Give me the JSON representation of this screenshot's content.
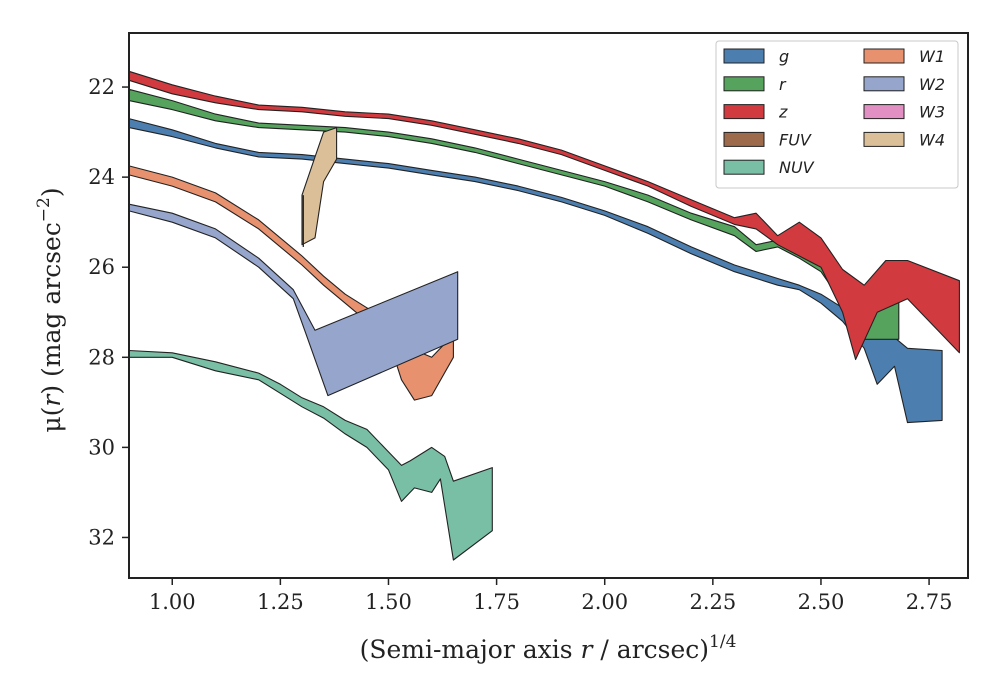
{
  "chart_data": {
    "type": "area",
    "title": "",
    "xlabel": {
      "prefix": "(Semi-major axis ",
      "var": "r",
      "suffix": " / arcsec)",
      "sup": "1/4"
    },
    "ylabel": {
      "prefix": "μ(",
      "var": "r",
      "suffix": ") (mag arcsec",
      "sup": "−2",
      "close": ")"
    },
    "xlim": [
      0.9,
      2.84
    ],
    "ylim": [
      32.9,
      20.8
    ],
    "y_inverted": true,
    "xticks": [
      1.0,
      1.25,
      1.5,
      1.75,
      2.0,
      2.25,
      2.5,
      2.75
    ],
    "xtick_labels": [
      "1.00",
      "1.25",
      "1.50",
      "1.75",
      "2.00",
      "2.25",
      "2.50",
      "2.75"
    ],
    "yticks": [
      22,
      24,
      26,
      28,
      30,
      32
    ],
    "ytick_labels": [
      "22",
      "24",
      "26",
      "28",
      "30",
      "32"
    ],
    "grid": false,
    "legend_position": "top-right",
    "legend_columns": 2,
    "series": [
      {
        "name": "g",
        "color": "#4c7fb0",
        "upper": [
          [
            0.9,
            22.7
          ],
          [
            1.0,
            22.95
          ],
          [
            1.1,
            23.25
          ],
          [
            1.2,
            23.45
          ],
          [
            1.3,
            23.5
          ],
          [
            1.4,
            23.6
          ],
          [
            1.5,
            23.7
          ],
          [
            1.6,
            23.85
          ],
          [
            1.7,
            24.0
          ],
          [
            1.8,
            24.2
          ],
          [
            1.9,
            24.45
          ],
          [
            2.0,
            24.75
          ],
          [
            2.1,
            25.1
          ],
          [
            2.2,
            25.55
          ],
          [
            2.3,
            25.95
          ],
          [
            2.4,
            26.25
          ],
          [
            2.45,
            26.4
          ],
          [
            2.5,
            26.6
          ],
          [
            2.55,
            26.9
          ],
          [
            2.6,
            27.3
          ],
          [
            2.65,
            27.4
          ],
          [
            2.7,
            27.8
          ],
          [
            2.78,
            27.85
          ]
        ],
        "lower": [
          [
            0.9,
            22.9
          ],
          [
            1.0,
            23.1
          ],
          [
            1.1,
            23.35
          ],
          [
            1.2,
            23.55
          ],
          [
            1.3,
            23.6
          ],
          [
            1.4,
            23.7
          ],
          [
            1.5,
            23.8
          ],
          [
            1.6,
            23.95
          ],
          [
            1.7,
            24.1
          ],
          [
            1.8,
            24.3
          ],
          [
            1.9,
            24.55
          ],
          [
            2.0,
            24.85
          ],
          [
            2.1,
            25.25
          ],
          [
            2.2,
            25.7
          ],
          [
            2.3,
            26.1
          ],
          [
            2.4,
            26.4
          ],
          [
            2.45,
            26.5
          ],
          [
            2.5,
            26.8
          ],
          [
            2.55,
            27.2
          ],
          [
            2.6,
            27.8
          ],
          [
            2.63,
            28.6
          ],
          [
            2.67,
            28.2
          ],
          [
            2.7,
            29.45
          ],
          [
            2.78,
            29.4
          ]
        ]
      },
      {
        "name": "r",
        "color": "#55a35d",
        "upper": [
          [
            0.9,
            22.05
          ],
          [
            1.0,
            22.3
          ],
          [
            1.1,
            22.6
          ],
          [
            1.2,
            22.8
          ],
          [
            1.3,
            22.85
          ],
          [
            1.4,
            22.9
          ],
          [
            1.5,
            23.0
          ],
          [
            1.6,
            23.15
          ],
          [
            1.7,
            23.35
          ],
          [
            1.8,
            23.6
          ],
          [
            1.9,
            23.85
          ],
          [
            2.0,
            24.1
          ],
          [
            2.1,
            24.4
          ],
          [
            2.2,
            24.8
          ],
          [
            2.3,
            25.1
          ],
          [
            2.35,
            25.5
          ],
          [
            2.4,
            25.4
          ],
          [
            2.45,
            25.6
          ],
          [
            2.5,
            25.8
          ],
          [
            2.55,
            26.4
          ],
          [
            2.6,
            26.8
          ],
          [
            2.68,
            26.75
          ]
        ],
        "lower": [
          [
            0.9,
            22.3
          ],
          [
            1.0,
            22.5
          ],
          [
            1.1,
            22.75
          ],
          [
            1.2,
            22.9
          ],
          [
            1.3,
            22.95
          ],
          [
            1.4,
            23.0
          ],
          [
            1.5,
            23.1
          ],
          [
            1.6,
            23.25
          ],
          [
            1.7,
            23.45
          ],
          [
            1.8,
            23.7
          ],
          [
            1.9,
            23.95
          ],
          [
            2.0,
            24.2
          ],
          [
            2.1,
            24.55
          ],
          [
            2.2,
            24.95
          ],
          [
            2.3,
            25.3
          ],
          [
            2.35,
            25.65
          ],
          [
            2.4,
            25.55
          ],
          [
            2.45,
            25.8
          ],
          [
            2.5,
            26.1
          ],
          [
            2.55,
            26.8
          ],
          [
            2.6,
            27.6
          ],
          [
            2.68,
            27.6
          ]
        ]
      },
      {
        "name": "z",
        "color": "#d13b40",
        "upper": [
          [
            0.9,
            21.65
          ],
          [
            1.0,
            21.95
          ],
          [
            1.1,
            22.2
          ],
          [
            1.2,
            22.4
          ],
          [
            1.3,
            22.45
          ],
          [
            1.4,
            22.55
          ],
          [
            1.5,
            22.6
          ],
          [
            1.6,
            22.75
          ],
          [
            1.7,
            22.95
          ],
          [
            1.8,
            23.15
          ],
          [
            1.9,
            23.4
          ],
          [
            2.0,
            23.75
          ],
          [
            2.1,
            24.1
          ],
          [
            2.2,
            24.5
          ],
          [
            2.3,
            24.9
          ],
          [
            2.35,
            24.8
          ],
          [
            2.4,
            25.3
          ],
          [
            2.45,
            25.0
          ],
          [
            2.5,
            25.35
          ],
          [
            2.55,
            26.05
          ],
          [
            2.6,
            26.4
          ],
          [
            2.65,
            25.85
          ],
          [
            2.7,
            25.85
          ],
          [
            2.82,
            26.3
          ]
        ],
        "lower": [
          [
            0.9,
            21.85
          ],
          [
            1.0,
            22.15
          ],
          [
            1.1,
            22.35
          ],
          [
            1.2,
            22.5
          ],
          [
            1.3,
            22.55
          ],
          [
            1.4,
            22.65
          ],
          [
            1.5,
            22.7
          ],
          [
            1.6,
            22.85
          ],
          [
            1.7,
            23.05
          ],
          [
            1.8,
            23.25
          ],
          [
            1.9,
            23.5
          ],
          [
            2.0,
            23.85
          ],
          [
            2.1,
            24.2
          ],
          [
            2.2,
            24.65
          ],
          [
            2.3,
            25.05
          ],
          [
            2.35,
            25.15
          ],
          [
            2.4,
            25.5
          ],
          [
            2.45,
            25.75
          ],
          [
            2.5,
            26.0
          ],
          [
            2.55,
            27.0
          ],
          [
            2.58,
            28.05
          ],
          [
            2.63,
            27.0
          ],
          [
            2.7,
            26.7
          ],
          [
            2.82,
            27.9
          ]
        ]
      },
      {
        "name": "FUV",
        "color": "#9e6a4c",
        "upper": [],
        "lower": []
      },
      {
        "name": "NUV",
        "color": "#79bfa6",
        "upper": [
          [
            0.9,
            27.85
          ],
          [
            1.0,
            27.9
          ],
          [
            1.1,
            28.1
          ],
          [
            1.2,
            28.35
          ],
          [
            1.25,
            28.6
          ],
          [
            1.3,
            28.9
          ],
          [
            1.35,
            29.1
          ],
          [
            1.4,
            29.4
          ],
          [
            1.45,
            29.6
          ],
          [
            1.5,
            30.1
          ],
          [
            1.53,
            30.4
          ],
          [
            1.55,
            30.3
          ],
          [
            1.6,
            30.0
          ],
          [
            1.63,
            30.2
          ],
          [
            1.65,
            30.75
          ],
          [
            1.74,
            30.45
          ]
        ],
        "lower": [
          [
            0.9,
            28.0
          ],
          [
            1.0,
            28.0
          ],
          [
            1.1,
            28.3
          ],
          [
            1.2,
            28.5
          ],
          [
            1.25,
            28.8
          ],
          [
            1.3,
            29.1
          ],
          [
            1.35,
            29.35
          ],
          [
            1.4,
            29.7
          ],
          [
            1.45,
            30.0
          ],
          [
            1.5,
            30.5
          ],
          [
            1.53,
            31.2
          ],
          [
            1.56,
            30.9
          ],
          [
            1.6,
            31.0
          ],
          [
            1.62,
            30.7
          ],
          [
            1.65,
            32.5
          ],
          [
            1.74,
            31.85
          ]
        ]
      },
      {
        "name": "W1",
        "color": "#e8916f",
        "upper": [
          [
            0.9,
            23.75
          ],
          [
            1.0,
            24.0
          ],
          [
            1.1,
            24.35
          ],
          [
            1.2,
            24.95
          ],
          [
            1.3,
            25.75
          ],
          [
            1.35,
            26.2
          ],
          [
            1.4,
            26.6
          ],
          [
            1.45,
            26.9
          ],
          [
            1.5,
            27.2
          ],
          [
            1.55,
            27.8
          ],
          [
            1.6,
            28.0
          ],
          [
            1.65,
            27.5
          ]
        ],
        "lower": [
          [
            0.9,
            23.95
          ],
          [
            1.0,
            24.2
          ],
          [
            1.1,
            24.55
          ],
          [
            1.2,
            25.15
          ],
          [
            1.3,
            25.95
          ],
          [
            1.35,
            26.4
          ],
          [
            1.4,
            26.8
          ],
          [
            1.45,
            27.2
          ],
          [
            1.5,
            27.6
          ],
          [
            1.53,
            28.5
          ],
          [
            1.56,
            28.95
          ],
          [
            1.6,
            28.85
          ],
          [
            1.65,
            28.0
          ]
        ]
      },
      {
        "name": "W2",
        "color": "#96a5cb",
        "upper": [
          [
            0.9,
            24.6
          ],
          [
            1.0,
            24.8
          ],
          [
            1.1,
            25.15
          ],
          [
            1.2,
            25.8
          ],
          [
            1.28,
            26.5
          ],
          [
            1.33,
            27.4
          ],
          [
            1.66,
            26.1
          ]
        ],
        "lower": [
          [
            0.9,
            24.75
          ],
          [
            1.0,
            25.0
          ],
          [
            1.1,
            25.35
          ],
          [
            1.2,
            26.0
          ],
          [
            1.28,
            26.7
          ],
          [
            1.31,
            27.5
          ],
          [
            1.36,
            28.85
          ],
          [
            1.66,
            27.6
          ]
        ]
      },
      {
        "name": "W3",
        "color": "#e28fc4",
        "upper": [],
        "lower": []
      },
      {
        "name": "W4",
        "color": "#dbbf98",
        "upper": [
          [
            1.3,
            24.4
          ],
          [
            1.33,
            23.55
          ],
          [
            1.35,
            23.0
          ],
          [
            1.38,
            22.9
          ]
        ],
        "lower": [
          [
            1.3,
            25.5
          ],
          [
            1.33,
            25.35
          ],
          [
            1.35,
            24.1
          ],
          [
            1.38,
            23.6
          ]
        ]
      }
    ]
  }
}
